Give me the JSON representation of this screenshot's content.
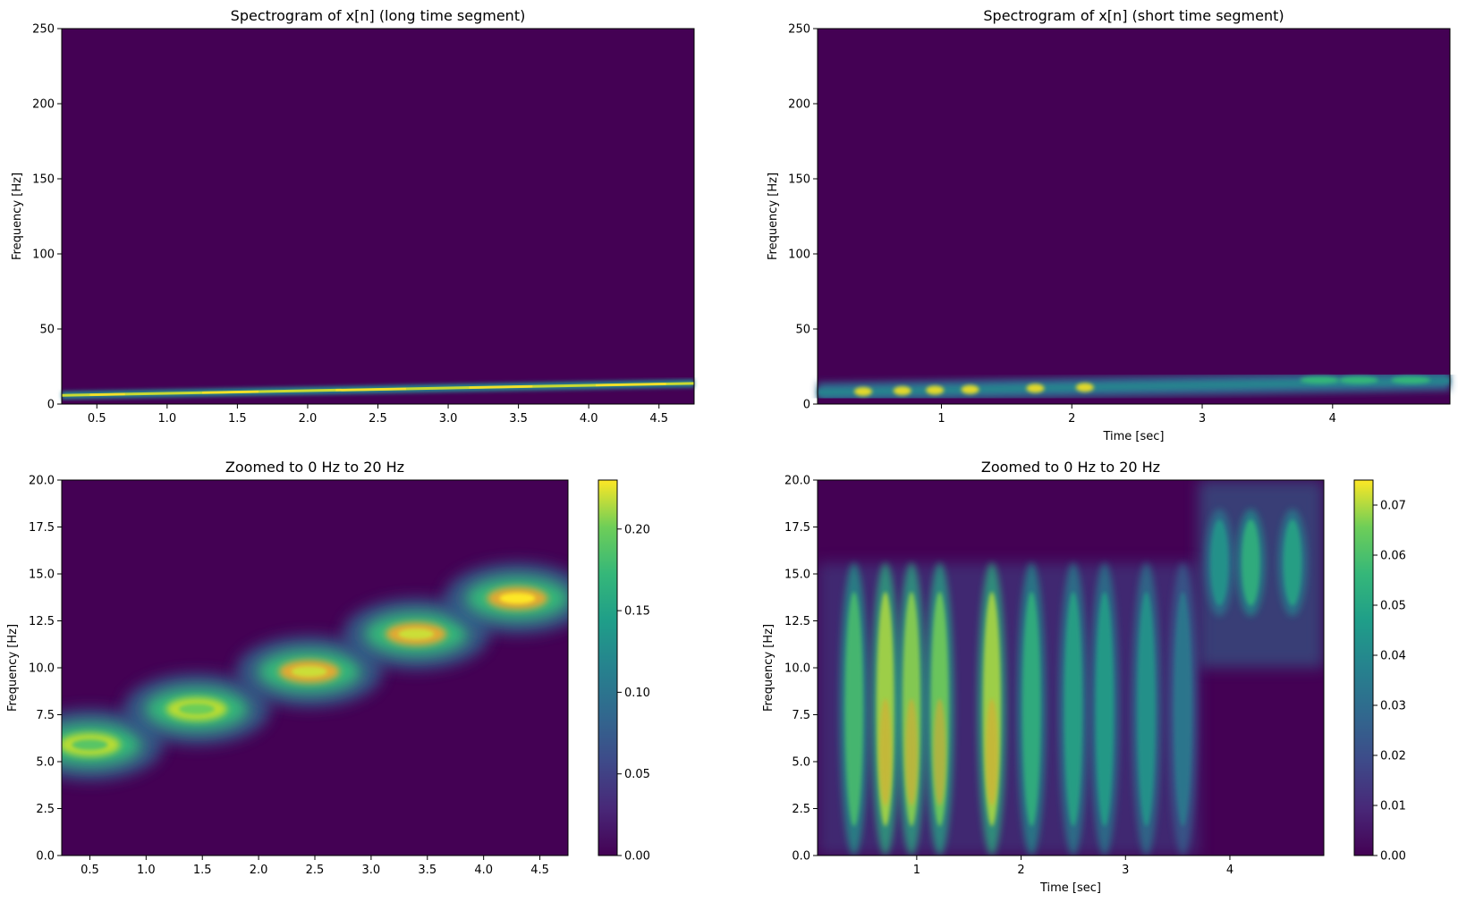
{
  "chart_data": [
    {
      "type": "heatmap",
      "title": "Spectrogram of x[n] (long time segment)",
      "xlabel": "",
      "ylabel": "Frequency [Hz]",
      "xlim": [
        0.25,
        4.75
      ],
      "ylim": [
        0,
        250
      ],
      "xticks": [
        "0.5",
        "1.0",
        "1.5",
        "2.0",
        "2.5",
        "3.0",
        "3.5",
        "4.0",
        "4.5"
      ],
      "yticks": [
        "0",
        "50",
        "100",
        "150",
        "200",
        "250"
      ],
      "ridge": {
        "time": [
          0.25,
          4.75
        ],
        "freq": [
          5.8,
          13.8
        ],
        "peak": 0.23
      },
      "colorbar": false
    },
    {
      "type": "heatmap",
      "title": "Spectrogram of x[n] (short time segment)",
      "xlabel": "Time [sec]",
      "ylabel": "Frequency [Hz]",
      "xlim": [
        0.05,
        4.9
      ],
      "ylim": [
        0,
        250
      ],
      "xticks": [
        "1",
        "2",
        "3",
        "4"
      ],
      "yticks": [
        "0",
        "50",
        "100",
        "150",
        "200",
        "250"
      ],
      "ridge": {
        "time": [
          0.05,
          4.9
        ],
        "freq": [
          7.8,
          15.6
        ],
        "peak": 0.075
      },
      "colorbar": false
    },
    {
      "type": "heatmap",
      "title": "Zoomed to 0 Hz to 20 Hz",
      "xlabel": "",
      "ylabel": "Frequency [Hz]",
      "xlim": [
        0.25,
        4.75
      ],
      "ylim": [
        0,
        20
      ],
      "xticks": [
        "0.5",
        "1.0",
        "1.5",
        "2.0",
        "2.5",
        "3.0",
        "3.5",
        "4.0",
        "4.5"
      ],
      "yticks": [
        "0.0",
        "2.5",
        "5.0",
        "7.5",
        "10.0",
        "12.5",
        "15.0",
        "17.5",
        "20.0"
      ],
      "blobs": [
        {
          "t": 0.5,
          "f": 5.9,
          "v": 0.19
        },
        {
          "t": 1.45,
          "f": 7.8,
          "v": 0.2
        },
        {
          "t": 2.45,
          "f": 9.8,
          "v": 0.22
        },
        {
          "t": 3.4,
          "f": 11.8,
          "v": 0.22
        },
        {
          "t": 4.3,
          "f": 13.7,
          "v": 0.23
        }
      ],
      "colorbar": true,
      "colorbar_range": [
        0,
        0.23
      ],
      "colorbar_ticks": [
        "0.00",
        "0.05",
        "0.10",
        "0.15",
        "0.20"
      ]
    },
    {
      "type": "heatmap",
      "title": "Zoomed to 0 Hz to 20 Hz",
      "xlabel": "Time [sec]",
      "ylabel": "Frequency [Hz]",
      "xlim": [
        0.05,
        4.9
      ],
      "ylim": [
        0,
        20
      ],
      "xticks": [
        "1",
        "2",
        "3",
        "4"
      ],
      "yticks": [
        "0.0",
        "2.5",
        "5.0",
        "7.5",
        "10.0",
        "12.5",
        "15.0",
        "17.5",
        "20.0"
      ],
      "bands": [
        {
          "t": 0.4,
          "f": 7.8,
          "v": 0.06
        },
        {
          "t": 0.7,
          "f": 7.8,
          "v": 0.07
        },
        {
          "t": 0.95,
          "f": 7.8,
          "v": 0.068
        },
        {
          "t": 1.22,
          "f": 7.8,
          "v": 0.066
        },
        {
          "t": 1.72,
          "f": 7.8,
          "v": 0.07
        },
        {
          "t": 2.1,
          "f": 7.8,
          "v": 0.055
        },
        {
          "t": 2.5,
          "f": 7.8,
          "v": 0.05
        },
        {
          "t": 2.8,
          "f": 7.8,
          "v": 0.048
        },
        {
          "t": 3.2,
          "f": 7.8,
          "v": 0.045
        },
        {
          "t": 3.55,
          "f": 7.8,
          "v": 0.035
        },
        {
          "t": 3.9,
          "f": 15.6,
          "v": 0.045
        },
        {
          "t": 4.2,
          "f": 15.6,
          "v": 0.055
        },
        {
          "t": 4.6,
          "f": 15.6,
          "v": 0.05
        }
      ],
      "colorbar": true,
      "colorbar_range": [
        0,
        0.075
      ],
      "colorbar_ticks": [
        "0.00",
        "0.01",
        "0.02",
        "0.03",
        "0.04",
        "0.05",
        "0.06",
        "0.07"
      ]
    }
  ]
}
